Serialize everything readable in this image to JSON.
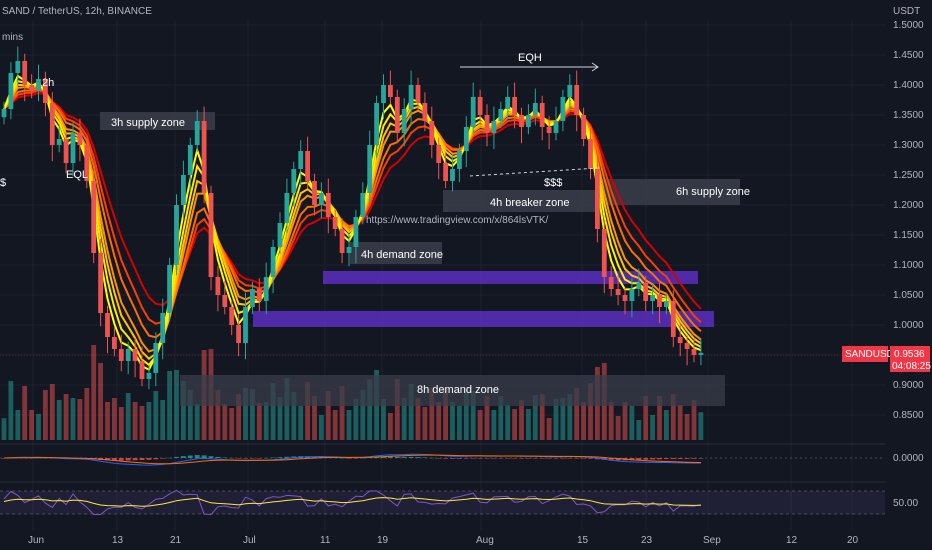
{
  "header": {
    "symbol_line": "SAND / TetherUS, 12h, BINANCE",
    "top_left_partial": "mins"
  },
  "price_axis": {
    "currency": "USDT",
    "ticks": [
      "1.5000",
      "1.4500",
      "1.4000",
      "1.3500",
      "1.3000",
      "1.2500",
      "1.2000",
      "1.1500",
      "1.1000",
      "1.0500",
      "1.0000",
      "0.9500",
      "0.9000",
      "0.8500"
    ]
  },
  "last_price": {
    "ticker": "SANDUSDT",
    "value": "0.9536",
    "countdown": "04:08:25",
    "color": "#f23645"
  },
  "time_axis": {
    "ticks": [
      "Jun",
      "13",
      "21",
      "Jul",
      "11",
      "19",
      "Aug",
      "15",
      "23",
      "Sep",
      "12",
      "20"
    ]
  },
  "macd_axis": {
    "ticks": [
      "0.0000"
    ]
  },
  "rsi_axis": {
    "ticks": [
      "50.00"
    ]
  },
  "watermark_url": "https://www.tradingview.com/x/864lsVTK/",
  "annotations": {
    "h2": "2h",
    "eql": "EQL",
    "dollars_left": "$",
    "supply_3h": "3h supply zone",
    "eqh": "EQH",
    "dollars_mid": "$$$",
    "breaker_4h": "4h breaker zone",
    "supply_6h": "6h supply zone",
    "demand_4h": "4h demand zone",
    "demand_8h": "8h demand zone"
  },
  "colors": {
    "background": "#131722",
    "bull": "#26a69a",
    "bear": "#ef5350",
    "zone_purple": "#5b2fbf",
    "zone_gray": "#3a3e4a",
    "ribbon": [
      "#d50000",
      "#ff3d00",
      "#ff6d00",
      "#ff9100",
      "#ffc400",
      "#ffea00",
      "#ffff00"
    ]
  },
  "chart_data": {
    "type": "candlestick",
    "ylim": [
      0.8,
      1.52
    ],
    "ribbon_ma_count": 7,
    "close": [
      1.36,
      1.42,
      1.44,
      1.4,
      1.39,
      1.41,
      1.37,
      1.3,
      1.31,
      1.27,
      1.32,
      1.3,
      1.24,
      1.12,
      1.02,
      0.98,
      0.96,
      0.94,
      0.96,
      0.94,
      0.91,
      0.92,
      0.97,
      1.02,
      1.1,
      1.2,
      1.25,
      1.3,
      1.34,
      1.22,
      1.08,
      1.05,
      1.03,
      1.0,
      0.97,
      1.03,
      1.06,
      1.04,
      1.08,
      1.13,
      1.17,
      1.22,
      1.26,
      1.29,
      1.24,
      1.2,
      1.22,
      1.18,
      1.16,
      1.12,
      1.13,
      1.18,
      1.22,
      1.3,
      1.37,
      1.4,
      1.38,
      1.32,
      1.36,
      1.4,
      1.37,
      1.34,
      1.3,
      1.27,
      1.24,
      1.26,
      1.29,
      1.33,
      1.38,
      1.35,
      1.32,
      1.34,
      1.36,
      1.38,
      1.35,
      1.33,
      1.35,
      1.37,
      1.33,
      1.32,
      1.34,
      1.38,
      1.4,
      1.35,
      1.31,
      1.26,
      1.16,
      1.08,
      1.06,
      1.05,
      1.04,
      1.06,
      1.07,
      1.04,
      1.05,
      1.03,
      1.04,
      0.98,
      0.97,
      0.96,
      0.95,
      0.9536
    ],
    "macd_zero": 0.0,
    "rsi_mid": 50.0
  }
}
